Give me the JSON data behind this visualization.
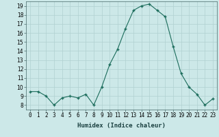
{
  "x": [
    0,
    1,
    2,
    3,
    4,
    5,
    6,
    7,
    8,
    9,
    10,
    11,
    12,
    13,
    14,
    15,
    16,
    17,
    18,
    19,
    20,
    21,
    22,
    23
  ],
  "y": [
    9.5,
    9.5,
    9.0,
    8.0,
    8.8,
    9.0,
    8.8,
    9.2,
    8.0,
    10.0,
    12.5,
    14.2,
    16.5,
    18.5,
    19.0,
    19.2,
    18.5,
    17.8,
    14.5,
    11.5,
    10.0,
    9.2,
    8.0,
    8.7
  ],
  "line_color": "#1a6b5a",
  "marker_color": "#1a6b5a",
  "bg_color": "#cce8e8",
  "grid_color": "#b0d0d0",
  "xlabel": "Humidex (Indice chaleur)",
  "ylim": [
    7.5,
    19.5
  ],
  "xlim": [
    -0.5,
    23.5
  ],
  "yticks": [
    8,
    9,
    10,
    11,
    12,
    13,
    14,
    15,
    16,
    17,
    18,
    19
  ],
  "xtick_labels": [
    "0",
    "1",
    "2",
    "3",
    "4",
    "5",
    "6",
    "7",
    "8",
    "9",
    "10",
    "11",
    "12",
    "13",
    "14",
    "15",
    "16",
    "17",
    "18",
    "19",
    "20",
    "21",
    "22",
    "23"
  ],
  "label_fontsize": 6.5,
  "tick_fontsize": 5.5
}
